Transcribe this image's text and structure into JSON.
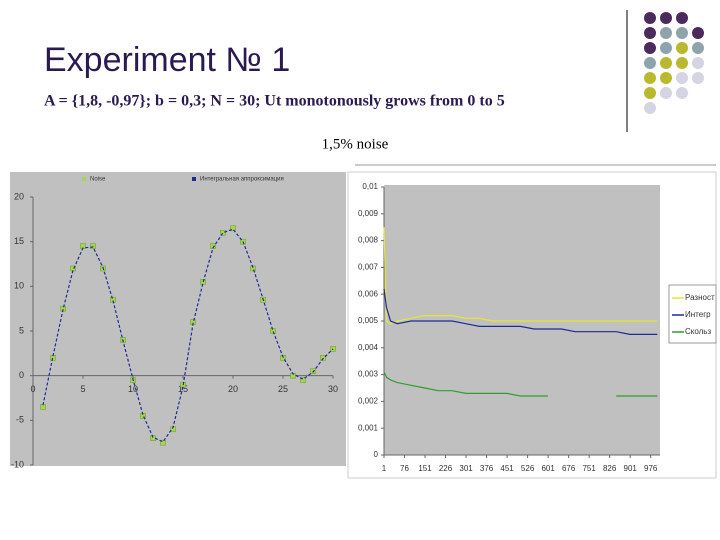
{
  "slide": {
    "title": "Experiment № 1",
    "subtitle": "A = {1,8, -0,97}; b = 0,3; N = 30; Ut monotonously grows from 0 to 5",
    "caption": "1,5% noise"
  },
  "chart_data": [
    {
      "type": "line",
      "x": [
        1,
        2,
        3,
        4,
        5,
        6,
        7,
        8,
        9,
        10,
        11,
        12,
        13,
        14,
        15,
        16,
        17,
        18,
        19,
        20,
        21,
        22,
        23,
        24,
        25,
        26,
        27,
        28,
        29,
        30
      ],
      "series": [
        {
          "name": "Noise",
          "color": "#a6d64a",
          "marker": "square",
          "values": [
            -3.5,
            2,
            7.5,
            12,
            14.5,
            14.5,
            12,
            8.5,
            4,
            -0.5,
            -4.5,
            -7,
            -7.5,
            -6,
            -1,
            6,
            10.5,
            14.5,
            16,
            16.5,
            15,
            12,
            8.5,
            5,
            2,
            0,
            -0.5,
            0.5,
            2,
            3
          ]
        },
        {
          "name": "Интегральная аппроксимация",
          "color": "#1f2a9a",
          "dash": true,
          "values": [
            -3.3,
            2.2,
            7.4,
            11.8,
            14.3,
            14.4,
            12.1,
            8.4,
            3.9,
            -0.4,
            -4.4,
            -6.9,
            -7.4,
            -5.8,
            -1.2,
            5.8,
            10.4,
            14.3,
            16,
            16.4,
            15,
            12.1,
            8.6,
            5,
            2.1,
            0.2,
            -0.4,
            0.4,
            1.9,
            3
          ]
        }
      ],
      "xlim": [
        0,
        30
      ],
      "xticks": [
        0,
        5,
        10,
        15,
        20,
        25,
        30
      ],
      "ylim": [
        -10,
        20
      ],
      "yticks": [
        -10,
        -5,
        0,
        5,
        10,
        15,
        20
      ]
    },
    {
      "type": "line",
      "x": [
        1,
        10,
        25,
        50,
        100,
        150,
        200,
        250,
        300,
        350,
        400,
        450,
        500,
        550,
        600,
        650,
        700,
        750,
        800,
        850,
        900,
        950,
        1000
      ],
      "series": [
        {
          "name": "Разност",
          "color": "#e6e632",
          "values": [
            0.0085,
            0.005,
            0.0049,
            0.005,
            0.0051,
            0.0052,
            0.0052,
            0.0052,
            0.0051,
            0.0051,
            0.005,
            0.005,
            0.005,
            0.005,
            0.005,
            0.005,
            0.005,
            0.005,
            0.005,
            0.005,
            0.005,
            0.005,
            0.005
          ]
        },
        {
          "name": "Интегр",
          "color": "#1f2a9a",
          "values": [
            0.0062,
            0.0055,
            0.005,
            0.0049,
            0.005,
            0.005,
            0.005,
            0.005,
            0.0049,
            0.0048,
            0.0048,
            0.0048,
            0.0048,
            0.0047,
            0.0047,
            0.0047,
            0.0046,
            0.0046,
            0.0046,
            0.0046,
            0.0045,
            0.0045,
            0.0045
          ]
        },
        {
          "name": "Скольз",
          "color": "#2e9e2e",
          "values": [
            0.0031,
            0.0029,
            0.0028,
            0.0027,
            0.0026,
            0.0025,
            0.0024,
            0.0024,
            0.0023,
            0.0023,
            0.0023,
            0.0023,
            0.0022,
            0.0022,
            0.0022,
            null,
            null,
            null,
            null,
            0.0022,
            0.0022,
            0.0022,
            0.0022
          ]
        }
      ],
      "xlim": [
        1,
        1010
      ],
      "xticks": [
        1,
        76,
        151,
        226,
        301,
        376,
        451,
        526,
        601,
        676,
        751,
        826,
        901,
        976
      ],
      "ylim": [
        0,
        0.01
      ],
      "yticks": [
        0,
        {
          "value": 0.001,
          "label": "0,001"
        },
        {
          "value": 0.002,
          "label": "0,002"
        },
        {
          "value": 0.003,
          "label": "0,003"
        },
        {
          "value": 0.004,
          "label": "0,004"
        },
        {
          "value": 0.005,
          "label": "0,005"
        },
        {
          "value": 0.006,
          "label": "0,006"
        },
        {
          "value": 0.007,
          "label": "0,007"
        },
        {
          "value": 0.008,
          "label": "0,008"
        },
        {
          "value": 0.009,
          "label": "0,009"
        },
        {
          "value": 0.01,
          "label": "0,01"
        }
      ]
    }
  ]
}
